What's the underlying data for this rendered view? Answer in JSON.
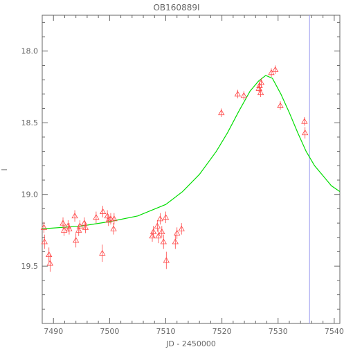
{
  "chart_data": {
    "type": "scatter",
    "title": "OB160889I",
    "xlabel": "JD - 2450000",
    "ylabel": "I",
    "xlim": [
      7488,
      7541
    ],
    "ylim": [
      19.9,
      17.75
    ],
    "y_inverted": true,
    "x_ticks": [
      7490,
      7500,
      7510,
      7520,
      7530,
      7540
    ],
    "x_tick_labels": [
      "7490",
      "7500",
      "7510",
      "7520",
      "7530",
      "7540"
    ],
    "y_ticks": [
      18.0,
      18.5,
      19.0,
      19.5
    ],
    "y_tick_labels": [
      "18.0",
      "18.5",
      "19.0",
      "19.5"
    ],
    "grid": false,
    "legend": "none",
    "vertical_line_x": 7535.6,
    "colors": {
      "points": "#ff4444",
      "model": "#00dd00",
      "vline": "#9999ee",
      "frame": "#666666"
    },
    "series": [
      {
        "kind": "points_with_errorbars",
        "marker": "triangle-open",
        "x": [
          7488.3,
          7488.4,
          7489.2,
          7489.4,
          7491.7,
          7491.9,
          7492.6,
          7492.8,
          7493.8,
          7494.0,
          7494.5,
          7494.7,
          7495.5,
          7495.7,
          7497.6,
          7498.7,
          7498.8,
          7499.6,
          7499.8,
          7500.2,
          7500.7,
          7500.8,
          7507.6,
          7507.8,
          7508.5,
          7508.7,
          7509.0,
          7509.3,
          7509.6,
          7510.0,
          7510.1,
          7511.7,
          7512.0,
          7512.8,
          7519.9,
          7522.8,
          7523.9,
          7526.6,
          7526.7,
          7526.9,
          7527.0,
          7528.8,
          7529.5,
          7530.4,
          7534.7,
          7534.8
        ],
        "y": [
          19.23,
          19.33,
          19.42,
          19.48,
          19.2,
          19.25,
          19.22,
          19.24,
          19.15,
          19.32,
          19.25,
          19.22,
          19.2,
          19.23,
          19.16,
          19.41,
          19.12,
          19.15,
          19.18,
          19.17,
          19.24,
          19.17,
          19.29,
          19.26,
          19.22,
          19.29,
          19.17,
          19.26,
          19.33,
          19.16,
          19.46,
          19.33,
          19.27,
          19.24,
          18.43,
          18.3,
          18.31,
          18.26,
          18.24,
          18.29,
          18.22,
          18.15,
          18.13,
          18.38,
          18.49,
          18.57
        ],
        "err": [
          0.04,
          0.05,
          0.05,
          0.06,
          0.04,
          0.04,
          0.04,
          0.04,
          0.04,
          0.05,
          0.04,
          0.04,
          0.04,
          0.04,
          0.04,
          0.06,
          0.04,
          0.04,
          0.04,
          0.04,
          0.04,
          0.04,
          0.04,
          0.04,
          0.04,
          0.05,
          0.04,
          0.04,
          0.05,
          0.04,
          0.06,
          0.05,
          0.04,
          0.04,
          0.03,
          0.03,
          0.03,
          0.03,
          0.03,
          0.03,
          0.03,
          0.03,
          0.03,
          0.03,
          0.03,
          0.04
        ]
      },
      {
        "kind": "model_curve",
        "x": [
          7488.0,
          7495.0,
          7500.0,
          7505.0,
          7510.0,
          7513.0,
          7516.0,
          7519.0,
          7521.0,
          7523.0,
          7525.0,
          7526.5,
          7527.8,
          7529.0,
          7530.5,
          7532.0,
          7533.5,
          7535.0,
          7536.5,
          7538.0,
          7539.5,
          7541.0
        ],
        "y": [
          19.24,
          19.22,
          19.19,
          19.15,
          19.07,
          18.98,
          18.86,
          18.7,
          18.57,
          18.42,
          18.28,
          18.21,
          18.17,
          18.19,
          18.3,
          18.43,
          18.57,
          18.7,
          18.8,
          18.87,
          18.94,
          18.98
        ]
      }
    ]
  }
}
